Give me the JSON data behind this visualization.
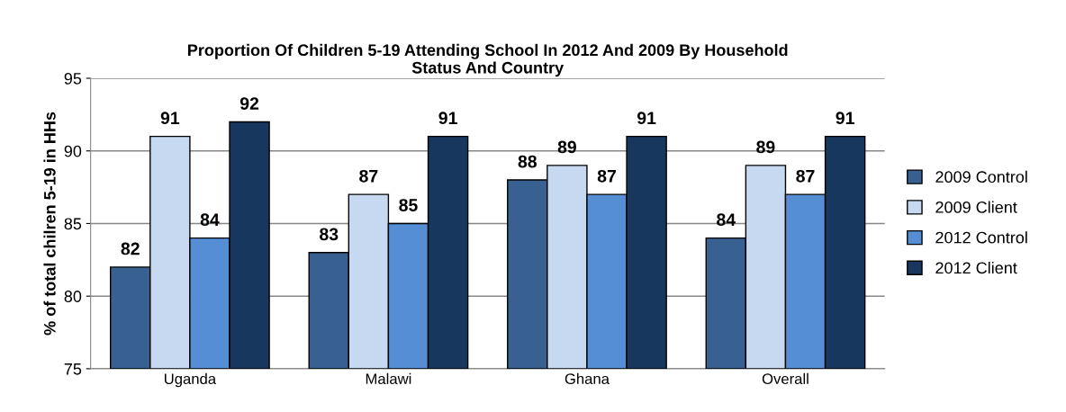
{
  "chart_data": {
    "type": "bar",
    "title": "Proportion Of Children 5-19 Attending School In 2012 And 2009 By Household\nStatus And Country",
    "ylabel": "% of total chilren 5-19 in HHs",
    "categories": [
      "Uganda",
      "Malawi",
      "Ghana",
      "Overall"
    ],
    "series": [
      {
        "name": "2009 Control",
        "color": "#386192",
        "values": [
          82,
          83,
          88,
          84
        ]
      },
      {
        "name": "2009 Client",
        "color": "#c6d9f0",
        "values": [
          91,
          87,
          89,
          89
        ]
      },
      {
        "name": "2012 Control",
        "color": "#558ed5",
        "values": [
          84,
          85,
          87,
          87
        ]
      },
      {
        "name": "2012 Client",
        "color": "#17375e",
        "values": [
          92,
          91,
          91,
          91
        ]
      }
    ],
    "ylim": [
      75,
      95
    ],
    "yticks": [
      75,
      80,
      85,
      90,
      95
    ],
    "grid": "y",
    "legend": "right",
    "data_labels": true
  }
}
